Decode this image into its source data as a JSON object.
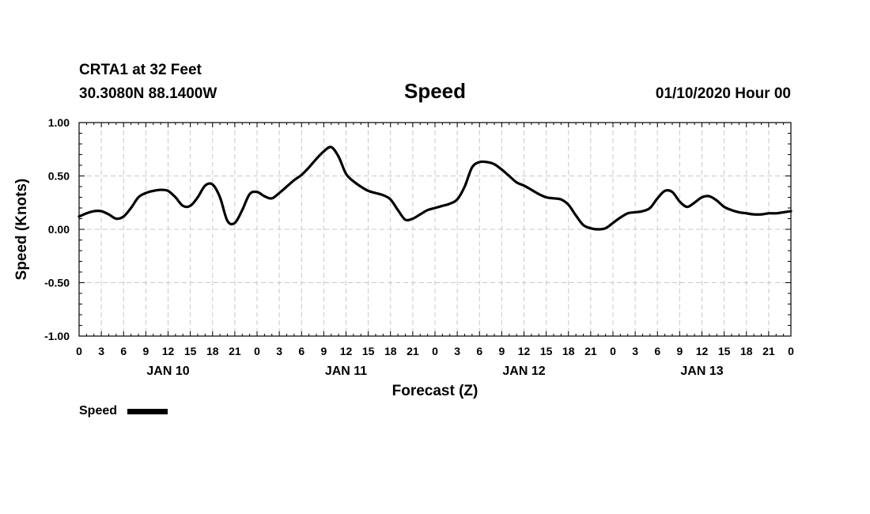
{
  "header": {
    "station": "CRTA1 at 32 Feet",
    "location": "30.3080N 88.1400W",
    "title": "Speed",
    "run": "01/10/2020 Hour 00"
  },
  "legend": {
    "label": "Speed"
  },
  "colors": {
    "line": "#000000",
    "grid": "#c8c8c8"
  },
  "chart_data": {
    "type": "line",
    "title": "Speed",
    "xlabel": "Forecast (Z)",
    "ylabel": "Speed (Knots)",
    "ylim": [
      -1.0,
      1.0
    ],
    "y_ticks": [
      "1.00",
      "0.50",
      "0.00",
      "-0.50",
      "-1.00"
    ],
    "x_unit": "forecast hour",
    "xlim": [
      0,
      96
    ],
    "x_tick_labels": [
      "0",
      "3",
      "6",
      "9",
      "12",
      "15",
      "18",
      "21",
      "0",
      "3",
      "6",
      "9",
      "12",
      "15",
      "18",
      "21",
      "0",
      "3",
      "6",
      "9",
      "12",
      "15",
      "18",
      "21",
      "0",
      "3",
      "6",
      "9",
      "12",
      "15",
      "18",
      "21",
      "0"
    ],
    "day_labels": [
      {
        "label": "JAN 10",
        "hour": 12
      },
      {
        "label": "JAN 11",
        "hour": 36
      },
      {
        "label": "JAN 12",
        "hour": 60
      },
      {
        "label": "JAN 13",
        "hour": 84
      }
    ],
    "grid": true,
    "legend_position": "bottom-left",
    "series": [
      {
        "name": "Speed",
        "x": [
          0,
          1,
          2,
          3,
          4,
          5,
          6,
          7,
          8,
          9,
          10,
          11,
          12,
          13,
          14,
          15,
          16,
          17,
          18,
          19,
          20,
          21,
          22,
          23,
          24,
          25,
          26,
          27,
          28,
          29,
          30,
          31,
          32,
          33,
          34,
          35,
          36,
          37,
          38,
          39,
          40,
          41,
          42,
          43,
          44,
          45,
          46,
          47,
          48,
          49,
          50,
          51,
          52,
          53,
          54,
          55,
          56,
          57,
          58,
          59,
          60,
          61,
          62,
          63,
          64,
          65,
          66,
          67,
          68,
          69,
          70,
          71,
          72,
          73,
          74,
          75,
          76,
          77,
          78,
          79,
          80,
          81,
          82,
          83,
          84,
          85,
          86,
          87,
          88,
          89,
          90,
          91,
          92,
          93,
          94,
          95,
          96
        ],
        "y": [
          0.12,
          0.15,
          0.17,
          0.17,
          0.14,
          0.1,
          0.12,
          0.2,
          0.3,
          0.34,
          0.36,
          0.37,
          0.36,
          0.3,
          0.22,
          0.22,
          0.3,
          0.41,
          0.42,
          0.3,
          0.08,
          0.06,
          0.18,
          0.33,
          0.35,
          0.31,
          0.29,
          0.34,
          0.4,
          0.46,
          0.51,
          0.58,
          0.66,
          0.73,
          0.77,
          0.68,
          0.52,
          0.45,
          0.4,
          0.36,
          0.34,
          0.32,
          0.28,
          0.18,
          0.09,
          0.1,
          0.14,
          0.18,
          0.2,
          0.22,
          0.24,
          0.28,
          0.4,
          0.58,
          0.63,
          0.63,
          0.61,
          0.56,
          0.5,
          0.44,
          0.41,
          0.37,
          0.33,
          0.3,
          0.29,
          0.28,
          0.23,
          0.13,
          0.04,
          0.01,
          0.0,
          0.01,
          0.06,
          0.11,
          0.15,
          0.16,
          0.17,
          0.2,
          0.29,
          0.36,
          0.35,
          0.26,
          0.21,
          0.25,
          0.3,
          0.31,
          0.27,
          0.21,
          0.18,
          0.16,
          0.15,
          0.14,
          0.14,
          0.15,
          0.15,
          0.16,
          0.17
        ]
      }
    ]
  }
}
